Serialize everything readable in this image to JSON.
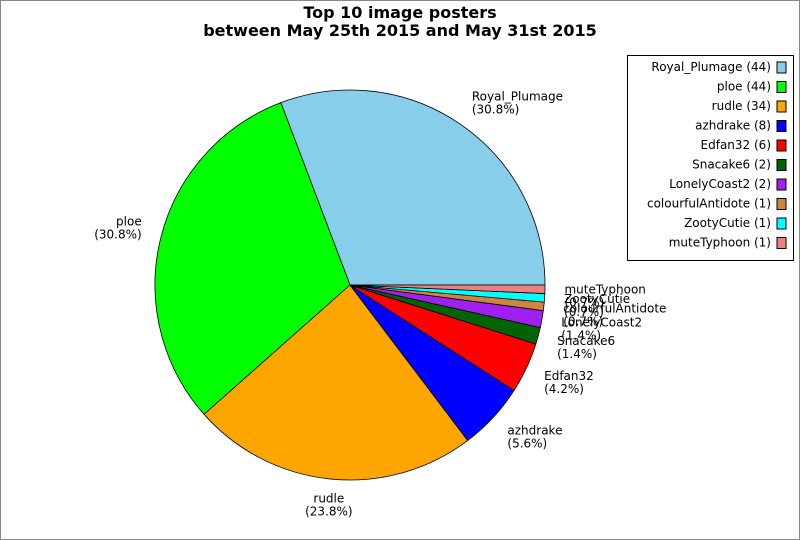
{
  "chart_data": {
    "type": "pie",
    "title": "Top 10 image posters",
    "subtitle": "between May 25th 2015 and May 31st 2015",
    "categories": [
      "Royal_Plumage",
      "ploe",
      "rudle",
      "azhdrake",
      "Edfan32",
      "Snacake6",
      "LonelyCoast2",
      "colourfulAntidote",
      "ZootyCutie",
      "muteTyphoon"
    ],
    "values": [
      30.8,
      30.8,
      23.8,
      5.6,
      4.2,
      1.4,
      1.4,
      0.7,
      0.7,
      0.7
    ],
    "value_labels": [
      "(30.8%)",
      "(30.8%)",
      "(23.8%)",
      "(5.6%)",
      "(4.2%)",
      "(1.4%)",
      "(1.4%)",
      "(0.7%)",
      "(0.7%)",
      "(0.7%)"
    ],
    "legend_labels": [
      "Royal_Plumage (44)",
      "ploe (44)",
      "rudle (34)",
      "azhdrake (8)",
      "Edfan32 (6)",
      "Snacake6 (2)",
      "LonelyCoast2 (2)",
      "colourfulAntidote (1)",
      "ZootyCutie (1)",
      "muteTyphoon (1)"
    ],
    "colors": [
      "#87ceeb",
      "#00ff00",
      "#ffa500",
      "#0000ff",
      "#ff0000",
      "#006400",
      "#a020f0",
      "#cd853f",
      "#00ffff",
      "#f08080"
    ],
    "legend": "upper right"
  }
}
